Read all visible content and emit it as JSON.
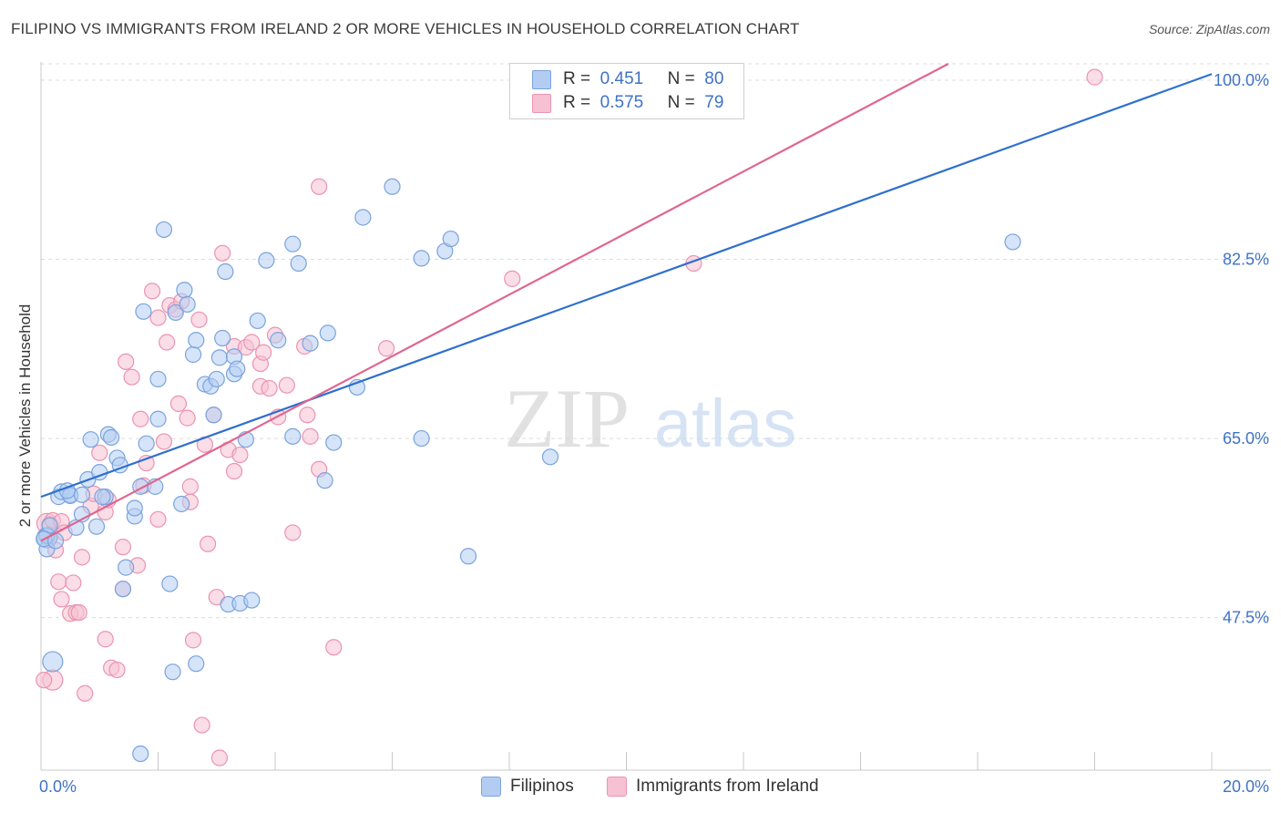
{
  "header": {
    "title": "FILIPINO VS IMMIGRANTS FROM IRELAND 2 OR MORE VEHICLES IN HOUSEHOLD CORRELATION CHART",
    "source": "Source: ZipAtlas.com"
  },
  "watermark": {
    "zip": "ZIP",
    "atlas": "atlas"
  },
  "legend": {
    "rows": [
      {
        "r_label": "R =",
        "r_value": "0.451",
        "n_label": "N =",
        "n_value": "80"
      },
      {
        "r_label": "R =",
        "r_value": "0.575",
        "n_label": "N =",
        "n_value": "79"
      }
    ]
  },
  "bottom_legend": {
    "series1": "Filipinos",
    "series2": "Immigrants from Ireland"
  },
  "colors": {
    "blue_fill": "#b3cdf2",
    "blue_stroke": "#7aa3de",
    "blue_line": "#2f6fce",
    "pink_fill": "#f6c1d2",
    "pink_stroke": "#ec93b0",
    "pink_line": "#e0658f",
    "tick_label": "#3f73c4",
    "grid": "#dcdcdc"
  },
  "chart_data": {
    "type": "scatter",
    "title": "FILIPINO VS IMMIGRANTS FROM IRELAND 2 OR MORE VEHICLES IN HOUSEHOLD CORRELATION CHART",
    "xlabel": "",
    "ylabel": "2 or more Vehicles in Household",
    "xlim": [
      0,
      20
    ],
    "ylim": [
      32.6,
      101.6
    ],
    "x_tick_labels": [
      "0.0%",
      "20.0%"
    ],
    "y_ticks": [
      47.5,
      65.0,
      82.5,
      100.0
    ],
    "y_tick_labels": [
      "47.5%",
      "65.0%",
      "82.5%",
      "100.0%"
    ],
    "grid": true,
    "legend_placement": "top-center",
    "series": [
      {
        "name": "Filipinos",
        "r": 0.451,
        "n": 80,
        "trend": {
          "x": [
            0,
            20
          ],
          "y": [
            59.3,
            100.6
          ]
        },
        "points": [
          [
            0.1,
            55.3
          ],
          [
            0.1,
            54.2
          ],
          [
            0.1,
            55.5
          ],
          [
            0.2,
            43.2
          ],
          [
            0.3,
            59.3
          ],
          [
            0.35,
            59.8
          ],
          [
            0.5,
            59.5
          ],
          [
            0.5,
            59.4
          ],
          [
            0.6,
            56.3
          ],
          [
            0.7,
            57.6
          ],
          [
            0.8,
            61.0
          ],
          [
            0.85,
            64.9
          ],
          [
            0.95,
            56.4
          ],
          [
            1.0,
            61.7
          ],
          [
            1.1,
            59.3
          ],
          [
            1.15,
            65.4
          ],
          [
            1.2,
            65.1
          ],
          [
            1.3,
            63.1
          ],
          [
            1.35,
            62.4
          ],
          [
            1.4,
            50.3
          ],
          [
            1.45,
            52.4
          ],
          [
            1.6,
            57.4
          ],
          [
            1.6,
            58.2
          ],
          [
            1.7,
            60.3
          ],
          [
            1.75,
            77.4
          ],
          [
            1.8,
            64.5
          ],
          [
            1.95,
            60.3
          ],
          [
            2.0,
            70.8
          ],
          [
            2.0,
            66.9
          ],
          [
            2.1,
            85.4
          ],
          [
            2.2,
            50.8
          ],
          [
            2.25,
            42.2
          ],
          [
            2.3,
            77.3
          ],
          [
            2.4,
            58.6
          ],
          [
            2.45,
            79.5
          ],
          [
            2.5,
            78.1
          ],
          [
            2.6,
            73.2
          ],
          [
            2.65,
            74.6
          ],
          [
            2.65,
            43.0
          ],
          [
            2.8,
            70.3
          ],
          [
            2.9,
            70.1
          ],
          [
            2.95,
            67.3
          ],
          [
            3.0,
            70.8
          ],
          [
            3.05,
            72.9
          ],
          [
            3.1,
            74.8
          ],
          [
            3.15,
            81.3
          ],
          [
            3.2,
            48.8
          ],
          [
            3.3,
            73.0
          ],
          [
            3.3,
            71.3
          ],
          [
            3.35,
            71.8
          ],
          [
            3.4,
            48.9
          ],
          [
            3.5,
            64.9
          ],
          [
            3.6,
            49.2
          ],
          [
            3.7,
            76.5
          ],
          [
            3.85,
            82.4
          ],
          [
            4.05,
            74.6
          ],
          [
            4.3,
            65.2
          ],
          [
            4.3,
            84.0
          ],
          [
            4.4,
            82.1
          ],
          [
            4.6,
            74.3
          ],
          [
            4.85,
            60.9
          ],
          [
            4.9,
            75.3
          ],
          [
            5.0,
            64.6
          ],
          [
            5.4,
            70.0
          ],
          [
            5.5,
            86.6
          ],
          [
            6.0,
            89.6
          ],
          [
            6.5,
            65.0
          ],
          [
            6.5,
            82.6
          ],
          [
            6.9,
            83.3
          ],
          [
            7.0,
            84.5
          ],
          [
            7.3,
            53.5
          ],
          [
            8.7,
            63.2
          ],
          [
            16.6,
            84.2
          ],
          [
            0.15,
            56.5
          ],
          [
            0.45,
            59.9
          ],
          [
            1.05,
            59.3
          ],
          [
            0.7,
            59.5
          ],
          [
            1.7,
            34.2
          ],
          [
            0.05,
            55.2
          ],
          [
            0.25,
            55.0
          ]
        ]
      },
      {
        "name": "Immigrants from Ireland",
        "r": 0.575,
        "n": 79,
        "trend": {
          "x": [
            0,
            15.5
          ],
          "y": [
            55.0,
            101.6
          ]
        },
        "points": [
          [
            0.1,
            56.7
          ],
          [
            0.15,
            56.6
          ],
          [
            0.15,
            55.3
          ],
          [
            0.2,
            41.4
          ],
          [
            0.2,
            57.0
          ],
          [
            0.25,
            54.1
          ],
          [
            0.3,
            51.0
          ],
          [
            0.35,
            49.3
          ],
          [
            0.35,
            56.9
          ],
          [
            0.4,
            55.8
          ],
          [
            0.5,
            47.9
          ],
          [
            0.55,
            50.9
          ],
          [
            0.6,
            48.0
          ],
          [
            0.65,
            48.0
          ],
          [
            0.7,
            53.4
          ],
          [
            0.75,
            40.1
          ],
          [
            0.85,
            58.4
          ],
          [
            0.9,
            59.6
          ],
          [
            1.0,
            63.6
          ],
          [
            1.1,
            57.8
          ],
          [
            1.1,
            45.4
          ],
          [
            1.15,
            59.0
          ],
          [
            1.2,
            42.6
          ],
          [
            1.3,
            42.4
          ],
          [
            1.4,
            50.3
          ],
          [
            1.4,
            54.4
          ],
          [
            1.45,
            72.5
          ],
          [
            1.55,
            71.0
          ],
          [
            1.65,
            52.6
          ],
          [
            1.7,
            66.9
          ],
          [
            1.75,
            60.4
          ],
          [
            1.8,
            62.6
          ],
          [
            1.9,
            79.4
          ],
          [
            2.0,
            76.8
          ],
          [
            2.0,
            57.1
          ],
          [
            2.1,
            64.7
          ],
          [
            2.15,
            74.4
          ],
          [
            2.2,
            78.0
          ],
          [
            2.3,
            77.6
          ],
          [
            2.35,
            68.4
          ],
          [
            2.4,
            78.4
          ],
          [
            2.5,
            67.0
          ],
          [
            2.55,
            60.3
          ],
          [
            2.55,
            58.8
          ],
          [
            2.6,
            45.3
          ],
          [
            2.7,
            76.6
          ],
          [
            2.75,
            37.0
          ],
          [
            2.8,
            64.4
          ],
          [
            2.85,
            54.7
          ],
          [
            2.95,
            67.3
          ],
          [
            3.0,
            49.5
          ],
          [
            3.05,
            33.8
          ],
          [
            3.1,
            83.1
          ],
          [
            3.2,
            63.9
          ],
          [
            3.3,
            61.8
          ],
          [
            3.3,
            74.0
          ],
          [
            3.4,
            63.4
          ],
          [
            3.5,
            73.9
          ],
          [
            3.6,
            74.4
          ],
          [
            3.75,
            72.3
          ],
          [
            3.75,
            70.1
          ],
          [
            3.8,
            73.4
          ],
          [
            3.9,
            69.9
          ],
          [
            4.0,
            75.1
          ],
          [
            4.05,
            67.1
          ],
          [
            4.2,
            70.2
          ],
          [
            4.3,
            55.8
          ],
          [
            4.5,
            74.0
          ],
          [
            4.55,
            67.3
          ],
          [
            4.6,
            65.2
          ],
          [
            4.75,
            62.0
          ],
          [
            4.75,
            89.6
          ],
          [
            5.0,
            44.6
          ],
          [
            5.9,
            73.8
          ],
          [
            8.05,
            80.6
          ],
          [
            11.15,
            82.1
          ],
          [
            18.0,
            100.3
          ],
          [
            0.05,
            41.4
          ],
          [
            0.1,
            55.4
          ]
        ]
      }
    ]
  }
}
